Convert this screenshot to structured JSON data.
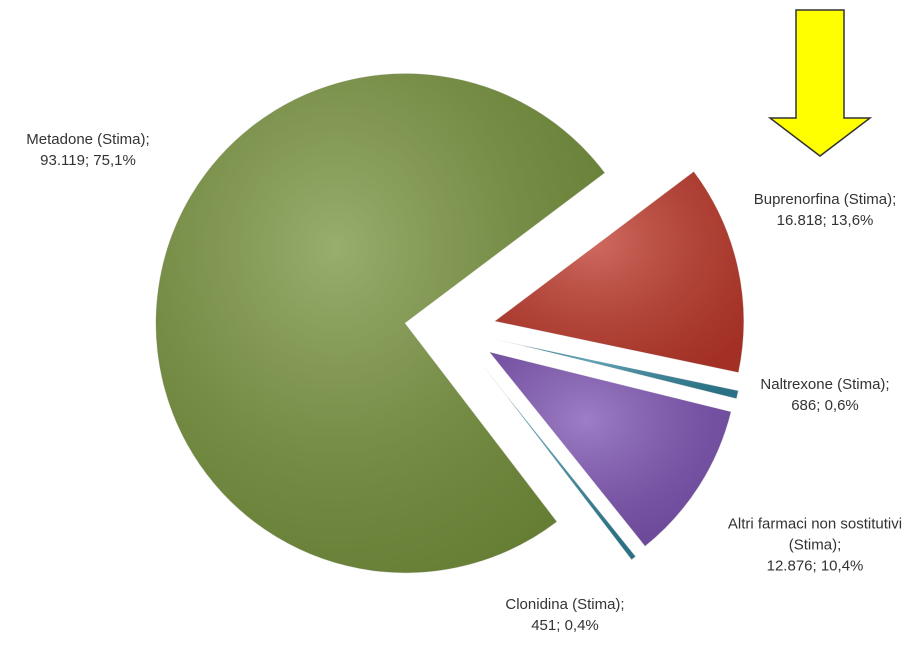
{
  "chart_data": {
    "type": "pie",
    "categories": [
      "Metadone (Stima);",
      "Buprenorfina (Stima);",
      "Naltrexone (Stima);",
      "Altri farmaci non sostitutivi (Stima);",
      "Clonidina (Stima);"
    ],
    "values": [
      93119,
      16818,
      686,
      12876,
      451
    ],
    "value_labels": [
      "93.119; 75,1%",
      "16.818; 13,6%",
      "686; 0,6%",
      "12.876; 10,4%",
      "451; 0,4%"
    ],
    "colors": [
      "#77933c",
      "#c0392b",
      "#31859c",
      "#7d52b3",
      "#31859c"
    ]
  }
}
